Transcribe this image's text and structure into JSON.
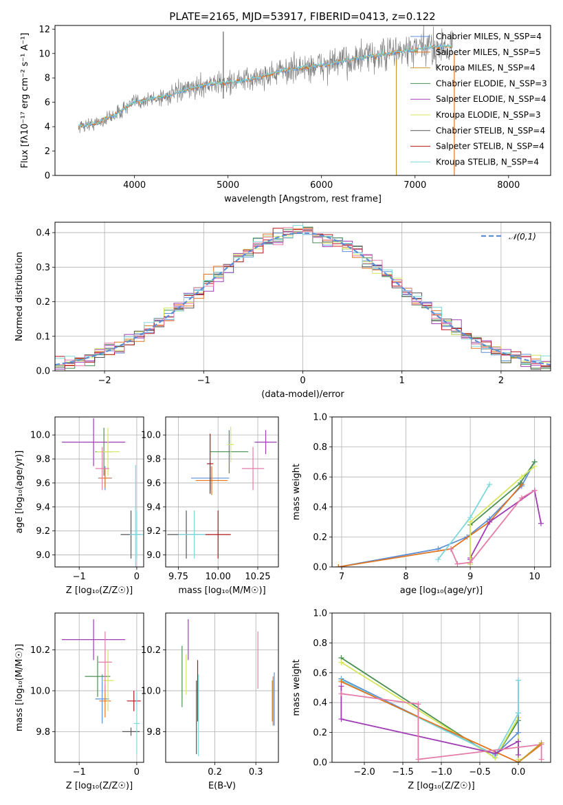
{
  "colors": [
    "#5b8ed6",
    "#e2731f",
    "#c59a2b",
    "#4a8f52",
    "#a03cb5",
    "#d6e65a",
    "#555555",
    "#b3121a",
    "#7dd8dc",
    "#e57ba8"
  ],
  "chart_data": [
    {
      "id": "spectrum",
      "type": "line",
      "title": "PLATE=2165, MJD=53917, FIBERID=0413, z=0.122",
      "xlabel": "wavelength [Angstrom, rest frame]",
      "ylabel": "Flux [fλ10⁻¹⁷ erg cm⁻² s⁻¹ A⁻¹]",
      "xlim": [
        3150,
        8450
      ],
      "ylim": [
        0,
        12.3
      ],
      "xticks": [
        "4000",
        "5000",
        "6000",
        "7000",
        "8000"
      ],
      "yticks": [
        "0",
        "2",
        "4",
        "6",
        "8",
        "10",
        "12"
      ],
      "legend_position": "upper right",
      "series": [
        {
          "name": "Chabrier MILES, N_SSP=4"
        },
        {
          "name": "Salpeter MILES, N_SSP=5"
        },
        {
          "name": "Kroupa MILES, N_SSP=4"
        },
        {
          "name": "Chabrier ELODIE, N_SSP=3"
        },
        {
          "name": "Salpeter ELODIE, N_SSP=4"
        },
        {
          "name": "Kroupa ELODIE, N_SSP=3"
        },
        {
          "name": "Chabrier STELIB, N_SSP=4"
        },
        {
          "name": "Salpeter STELIB, N_SSP=4"
        },
        {
          "name": "Kroupa STELIB, N_SSP=4"
        }
      ],
      "continuum": {
        "x": [
          3400,
          3600,
          3800,
          4000,
          4200,
          4400,
          4600,
          4800,
          5000,
          5200,
          5400,
          5600,
          5800,
          6000,
          6200,
          6400,
          6600,
          6800,
          7000,
          7200,
          7400
        ],
        "y": [
          4.0,
          4.3,
          5.0,
          6.0,
          6.3,
          6.6,
          7.1,
          7.5,
          7.6,
          7.8,
          8.2,
          8.6,
          8.8,
          9.0,
          9.3,
          9.6,
          9.8,
          10.1,
          10.3,
          10.5,
          10.6
        ]
      }
    },
    {
      "id": "residuals",
      "type": "histogram",
      "xlabel": "(data-model)/error",
      "ylabel": "Normed distribution",
      "xlim": [
        -2.5,
        2.5
      ],
      "ylim": [
        0,
        0.43
      ],
      "xticks": [
        "−2",
        "−1",
        "0",
        "1",
        "2"
      ],
      "yticks": [
        "0.0",
        "0.1",
        "0.2",
        "0.3",
        "0.4"
      ],
      "legend": "𝒩(0,1)",
      "legend_position": "upper right",
      "grid": true
    },
    {
      "id": "age-vs-Z",
      "type": "scatter",
      "xlabel": "Z [log₁₀(Z/Z☉)]",
      "ylabel": "age [log₁₀(age/yr)]",
      "xlim": [
        -1.42,
        0.12
      ],
      "ylim": [
        8.9,
        10.15
      ],
      "xticks": [
        "−1",
        "0"
      ],
      "yticks": [
        "9.0",
        "9.2",
        "9.4",
        "9.6",
        "9.8",
        "10.0"
      ],
      "grid": true,
      "points": [
        {
          "x": -0.55,
          "y": 9.64,
          "xerr": 0.12,
          "yerr": 0.1,
          "c": 0
        },
        {
          "x": -0.55,
          "y": 9.64,
          "xerr": 0.1,
          "yerr": 0.08,
          "c": 1
        },
        {
          "x": -0.57,
          "y": 9.86,
          "xerr": 0.15,
          "yerr": 0.2,
          "c": 3
        },
        {
          "x": -0.75,
          "y": 9.94,
          "xerr": 0.55,
          "yerr": 0.2,
          "c": 4
        },
        {
          "x": -0.5,
          "y": 9.86,
          "xerr": 0.2,
          "yerr": 0.2,
          "c": 5
        },
        {
          "x": -0.6,
          "y": 9.72,
          "xerr": 0.12,
          "yerr": 0.18,
          "c": 9
        },
        {
          "x": -0.1,
          "y": 9.17,
          "xerr": 0.18,
          "yerr": 0.2,
          "c": 6
        },
        {
          "x": 0.0,
          "y": 9.17,
          "xerr": 0.12,
          "yerr": 0.2,
          "c": 8
        },
        {
          "x": -0.02,
          "y": 9.2,
          "xerr": 0.02,
          "yerr": 0.55,
          "c": 8
        }
      ]
    },
    {
      "id": "age-vs-mass",
      "type": "scatter",
      "xlabel": "mass [log₁₀(M/M☉)]",
      "ylabel": "",
      "xlim": [
        9.67,
        10.38
      ],
      "ylim": [
        8.9,
        10.15
      ],
      "xticks": [
        "9.75",
        "10.00",
        "10.25"
      ],
      "yticks": [
        "9.0",
        "9.2",
        "9.4",
        "9.6",
        "9.8",
        "10.0"
      ],
      "grid": true,
      "points": [
        {
          "x": 9.95,
          "y": 9.64,
          "xerr": 0.12,
          "yerr": 0.1,
          "c": 0
        },
        {
          "x": 9.96,
          "y": 9.62,
          "xerr": 0.1,
          "yerr": 0.12,
          "c": 1
        },
        {
          "x": 9.95,
          "y": 9.76,
          "xerr": 0.02,
          "yerr": 0.25,
          "c": 7
        },
        {
          "x": 10.07,
          "y": 9.86,
          "xerr": 0.12,
          "yerr": 0.18,
          "c": 3
        },
        {
          "x": 10.3,
          "y": 9.94,
          "xerr": 0.07,
          "yerr": 0.1,
          "c": 4
        },
        {
          "x": 10.08,
          "y": 9.92,
          "xerr": 0.02,
          "yerr": 0.15,
          "c": 5
        },
        {
          "x": 10.22,
          "y": 9.72,
          "xerr": 0.07,
          "yerr": 0.18,
          "c": 9
        },
        {
          "x": 9.8,
          "y": 9.17,
          "xerr": 0.12,
          "yerr": 0.2,
          "c": 6
        },
        {
          "x": 9.85,
          "y": 9.17,
          "xerr": 0.1,
          "yerr": 0.2,
          "c": 8
        },
        {
          "x": 10.0,
          "y": 9.17,
          "xerr": 0.08,
          "yerr": 0.2,
          "c": 7
        }
      ]
    },
    {
      "id": "massweight-vs-age",
      "type": "line",
      "xlabel": "age [log₁₀(age/yr)]",
      "ylabel": "mass weight",
      "xlim": [
        6.85,
        10.25
      ],
      "ylim": [
        0,
        1.0
      ],
      "xticks": [
        "7",
        "8",
        "9",
        "10"
      ],
      "yticks": [
        "0.0",
        "0.2",
        "0.4",
        "0.6",
        "0.8",
        "1.0"
      ],
      "grid": true,
      "series": [
        {
          "c": 0,
          "x": [
            6.95,
            8.5,
            8.95,
            9.3,
            9.8,
            10.0
          ],
          "y": [
            0.0,
            0.12,
            0.2,
            0.32,
            0.54,
            0.7
          ]
        },
        {
          "c": 1,
          "x": [
            6.95,
            8.7,
            9.3,
            9.8
          ],
          "y": [
            0.0,
            0.12,
            0.3,
            0.55
          ]
        },
        {
          "c": 3,
          "x": [
            9.0,
            9.0,
            9.78,
            10.0
          ],
          "y": [
            0.02,
            0.28,
            0.56,
            0.7
          ]
        },
        {
          "c": 4,
          "x": [
            9.0,
            9.0,
            9.3,
            10.0,
            10.1
          ],
          "y": [
            0.05,
            0.06,
            0.3,
            0.51,
            0.29
          ]
        },
        {
          "c": 5,
          "x": [
            9.0,
            9.0,
            9.8,
            10.0
          ],
          "y": [
            0.02,
            0.3,
            0.6,
            0.67
          ]
        },
        {
          "c": 9,
          "x": [
            8.7,
            8.8,
            9.0,
            9.8,
            10.0
          ],
          "y": [
            0.12,
            0.02,
            0.03,
            0.46,
            0.51
          ]
        },
        {
          "c": 8,
          "x": [
            8.5,
            9.0,
            9.3
          ],
          "y": [
            0.05,
            0.33,
            0.55
          ]
        }
      ]
    },
    {
      "id": "mass-vs-Z",
      "type": "scatter",
      "xlabel": "Z [log₁₀(Z/Z☉)]",
      "ylabel": "mass [log₁₀(M/M☉)]",
      "xlim": [
        -1.42,
        0.12
      ],
      "ylim": [
        9.65,
        10.38
      ],
      "xticks": [
        "−1",
        "0"
      ],
      "yticks": [
        "9.8",
        "10.0",
        "10.2"
      ],
      "grid": true,
      "points": [
        {
          "x": -0.6,
          "y": 9.96,
          "xerr": 0.12,
          "yerr": 0.12,
          "c": 0
        },
        {
          "x": -0.55,
          "y": 9.95,
          "xerr": 0.1,
          "yerr": 0.08,
          "c": 1
        },
        {
          "x": -0.68,
          "y": 10.07,
          "xerr": 0.22,
          "yerr": 0.1,
          "c": 3
        },
        {
          "x": -0.75,
          "y": 10.25,
          "xerr": 0.55,
          "yerr": 0.1,
          "c": 4
        },
        {
          "x": -0.5,
          "y": 10.05,
          "xerr": 0.1,
          "yerr": 0.15,
          "c": 5
        },
        {
          "x": -0.55,
          "y": 10.14,
          "xerr": 0.12,
          "yerr": 0.15,
          "c": 9
        },
        {
          "x": -0.1,
          "y": 9.8,
          "xerr": 0.15,
          "yerr": 0.02,
          "c": 6
        },
        {
          "x": -0.05,
          "y": 9.95,
          "xerr": 0.12,
          "yerr": 0.05,
          "c": 7
        },
        {
          "x": 0.0,
          "y": 9.84,
          "xerr": 0.05,
          "yerr": 0.15,
          "c": 8
        }
      ]
    },
    {
      "id": "mass-vs-EBV",
      "type": "scatter",
      "xlabel": "E(B-V)",
      "ylabel": "",
      "xlim": [
        0.08,
        0.355
      ],
      "ylim": [
        9.65,
        10.38
      ],
      "xticks": [
        "0.2",
        "0.3"
      ],
      "yticks": [
        "9.8",
        "10.0",
        "10.2"
      ],
      "grid": true,
      "points": [
        {
          "x": 0.12,
          "y": 10.07,
          "xerr": 0,
          "yerr": 0.15,
          "c": 3
        },
        {
          "x": 0.135,
          "y": 10.25,
          "xerr": 0,
          "yerr": 0.1,
          "c": 4
        },
        {
          "x": 0.13,
          "y": 10.08,
          "xerr": 0,
          "yerr": 0.1,
          "c": 5
        },
        {
          "x": 0.155,
          "y": 9.87,
          "xerr": 0,
          "yerr": 0.18,
          "c": 6
        },
        {
          "x": 0.158,
          "y": 10.0,
          "xerr": 0,
          "yerr": 0.15,
          "c": 7
        },
        {
          "x": 0.16,
          "y": 9.88,
          "xerr": 0,
          "yerr": 0.2,
          "c": 8
        },
        {
          "x": 0.305,
          "y": 10.15,
          "xerr": 0,
          "yerr": 0.14,
          "c": 9
        },
        {
          "x": 0.34,
          "y": 9.95,
          "xerr": 0,
          "yerr": 0.1,
          "c": 2
        },
        {
          "x": 0.342,
          "y": 9.95,
          "xerr": 0,
          "yerr": 0.12,
          "c": 1
        },
        {
          "x": 0.345,
          "y": 9.96,
          "xerr": 0,
          "yerr": 0.13,
          "c": 0
        }
      ]
    },
    {
      "id": "massweight-vs-Z",
      "type": "line",
      "xlabel": "Z [log₁₀(Z/Z☉)]",
      "ylabel": "mass weight",
      "xlim": [
        -2.42,
        0.42
      ],
      "ylim": [
        0,
        1.0
      ],
      "xticks": [
        "−2.0",
        "−1.5",
        "−1.0",
        "−0.5",
        "0.0"
      ],
      "yticks": [
        "0.0",
        "0.2",
        "0.4",
        "0.6",
        "0.8",
        "1.0"
      ],
      "grid": true,
      "series": [
        {
          "c": 3,
          "x": [
            -2.3,
            -0.3,
            0.0,
            0.0
          ],
          "y": [
            0.7,
            0.03,
            0.28,
            0.33
          ]
        },
        {
          "c": 5,
          "x": [
            -2.3,
            -0.3,
            0.0,
            0.0
          ],
          "y": [
            0.67,
            0.03,
            0.3,
            0.02
          ]
        },
        {
          "c": 0,
          "x": [
            -2.3,
            -0.3,
            0.0,
            0.0
          ],
          "y": [
            0.56,
            0.05,
            0.2,
            0.55
          ]
        },
        {
          "c": 8,
          "x": [
            -2.3,
            -0.3,
            0.0,
            0.0
          ],
          "y": [
            0.55,
            0.05,
            0.33,
            0.55
          ]
        },
        {
          "c": 1,
          "x": [
            -2.3,
            0.0,
            0.3
          ],
          "y": [
            0.54,
            0.0,
            0.12
          ]
        },
        {
          "c": 4,
          "x": [
            -2.3,
            -2.3,
            -0.3,
            0.0,
            0.0
          ],
          "y": [
            0.51,
            0.29,
            0.06,
            0.14,
            0.05
          ]
        },
        {
          "c": 9,
          "x": [
            -2.3,
            -1.3,
            -1.3,
            0.3,
            0.3
          ],
          "y": [
            0.46,
            0.39,
            0.02,
            0.12,
            0.02
          ]
        },
        {
          "c": 2,
          "x": [
            0.0,
            0.3
          ],
          "y": [
            0.0,
            0.13
          ]
        }
      ]
    }
  ]
}
